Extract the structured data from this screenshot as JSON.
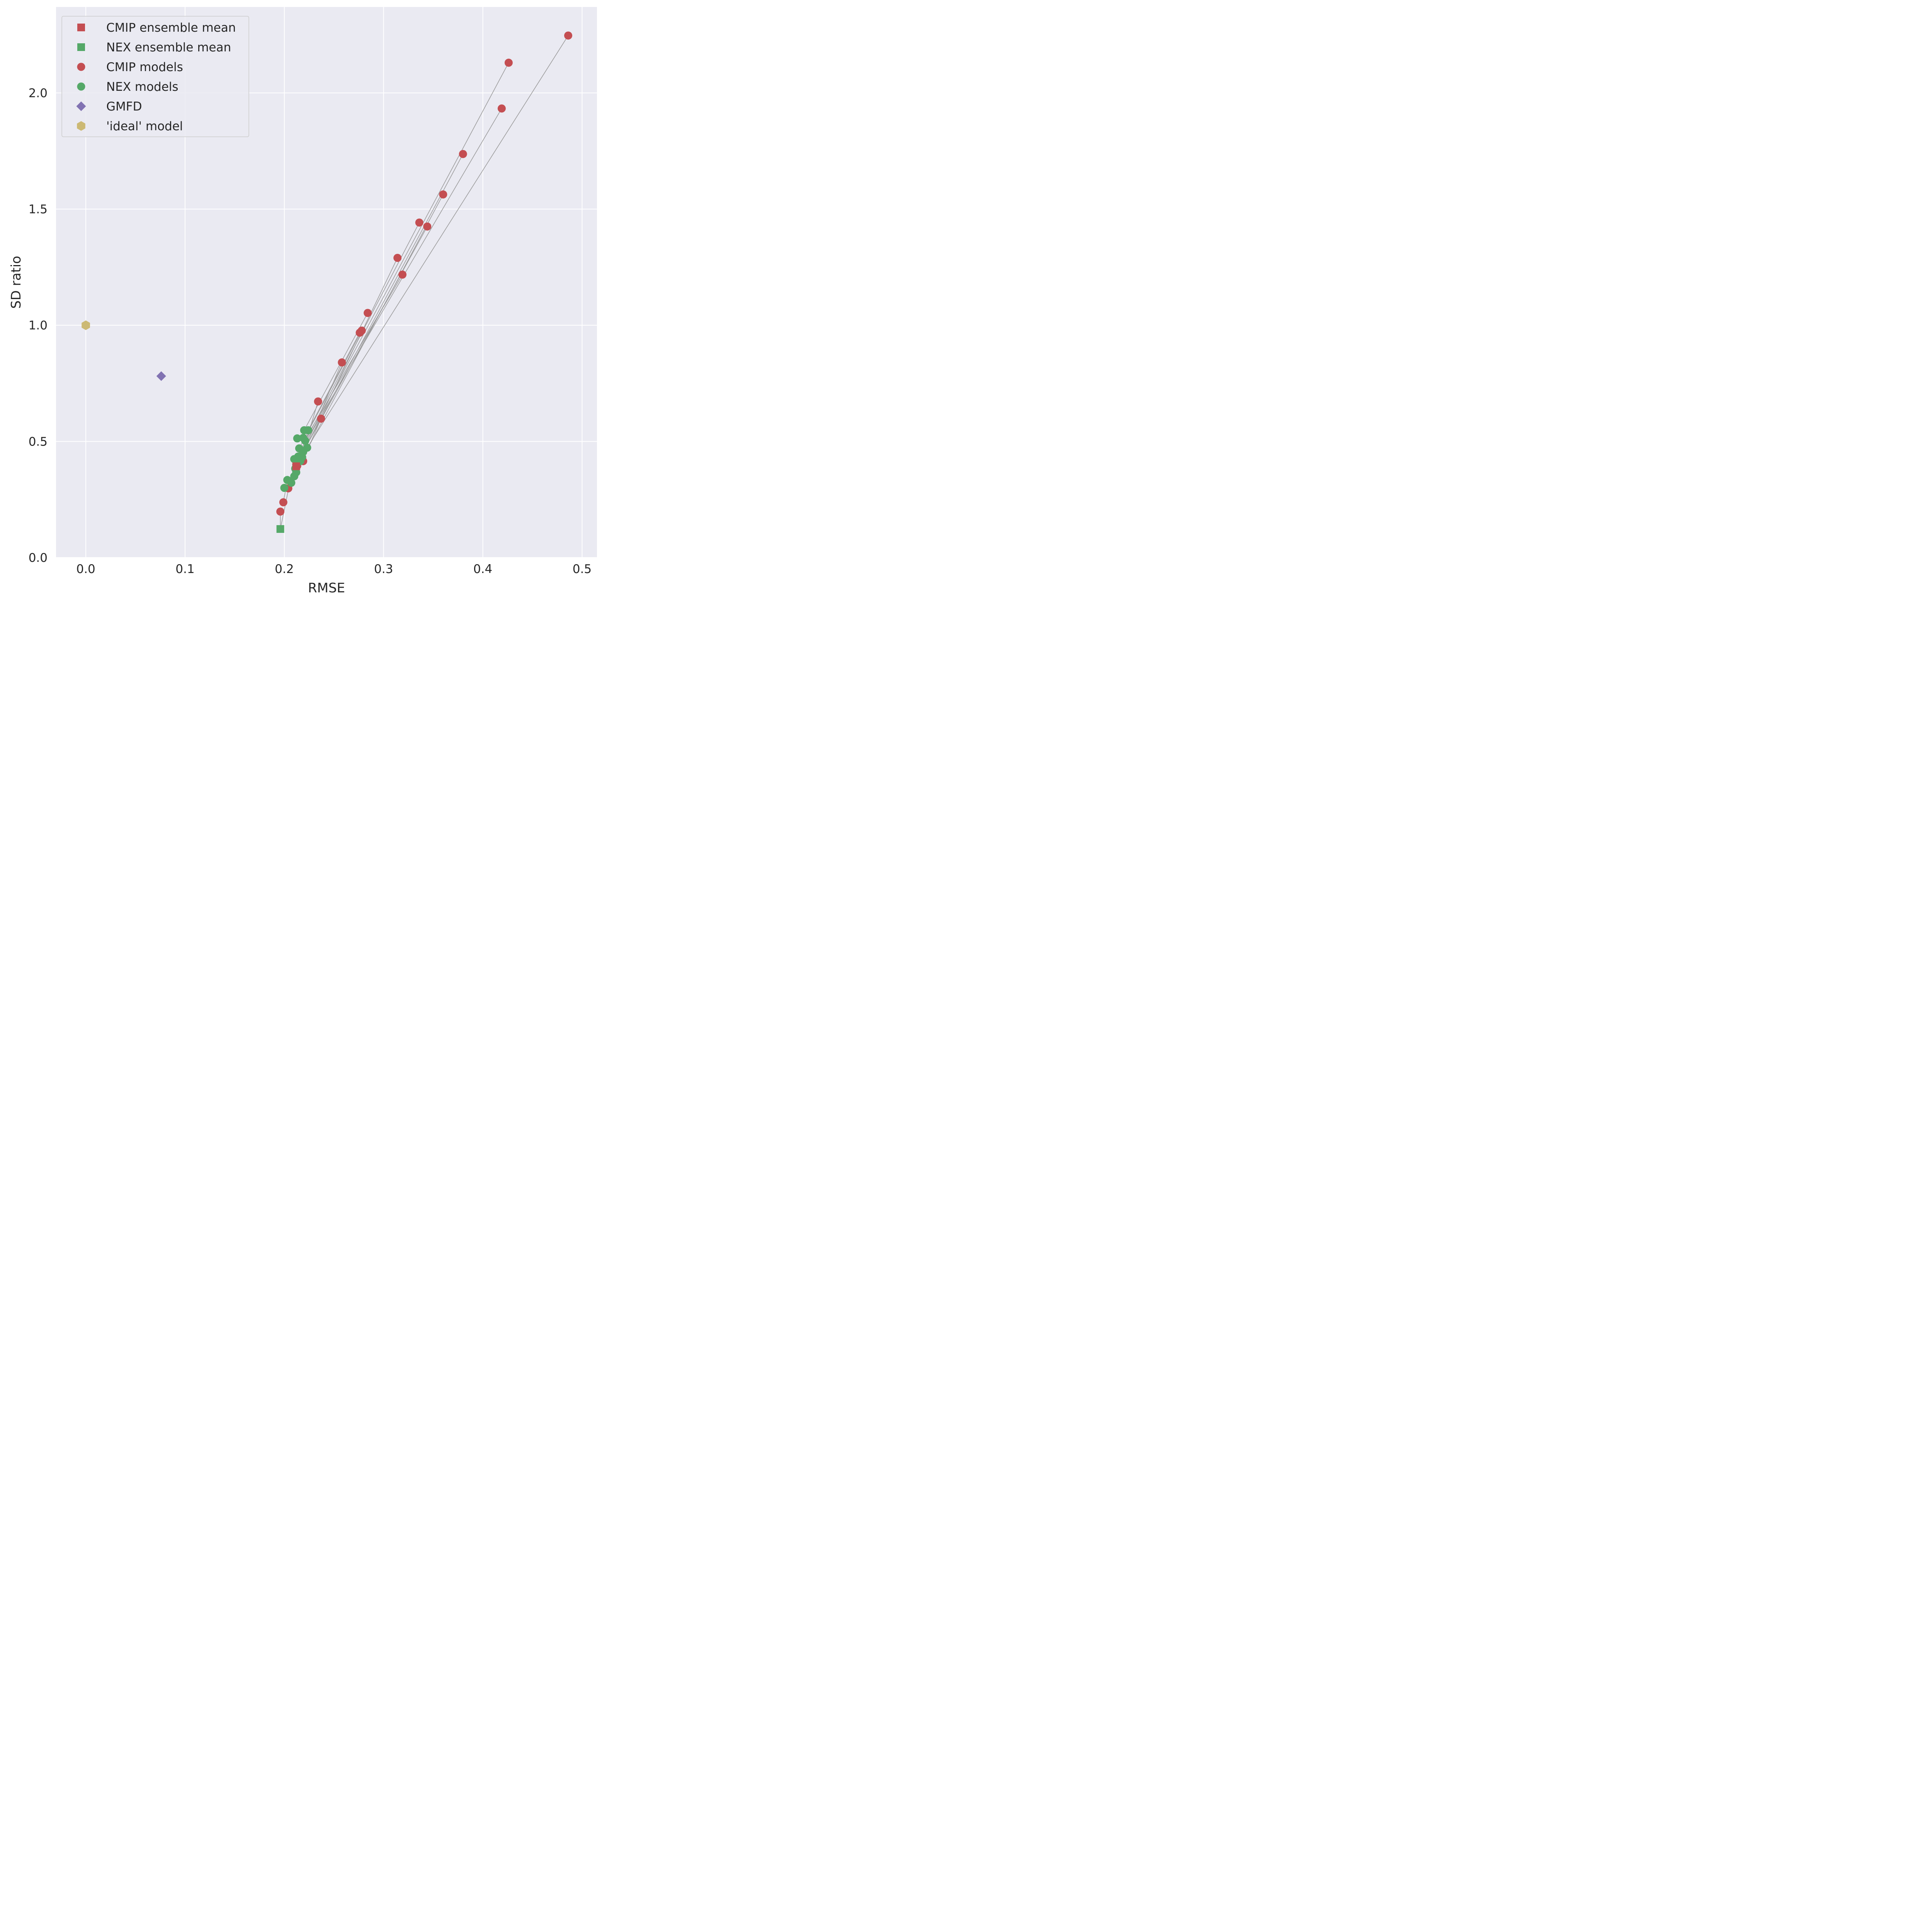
{
  "chart_data": {
    "type": "scatter",
    "xlabel": "RMSE",
    "ylabel": "SD ratio",
    "xlim": [
      -0.03,
      0.515
    ],
    "ylim": [
      0.0,
      2.37
    ],
    "xticks": [
      0.0,
      0.1,
      0.2,
      0.3,
      0.4,
      0.5
    ],
    "xtick_labels": [
      "0.0",
      "0.1",
      "0.2",
      "0.3",
      "0.4",
      "0.5"
    ],
    "yticks": [
      0.0,
      0.5,
      1.0,
      1.5,
      2.0
    ],
    "ytick_labels": [
      "0.0",
      "0.5",
      "1.0",
      "1.5",
      "2.0"
    ],
    "grid": true,
    "legend_position": "top-left",
    "colors": {
      "background": "#eaeaf2",
      "grid": "#ffffff",
      "cmip": "#c44e52",
      "nex": "#55a868",
      "gmfd": "#8172b2",
      "ideal": "#ccb974",
      "connector": "#9a9a9a"
    },
    "legend": [
      {
        "label": "CMIP ensemble mean",
        "marker": "square",
        "color": "#c44e52"
      },
      {
        "label": "NEX ensemble mean",
        "marker": "square",
        "color": "#55a868"
      },
      {
        "label": "CMIP models",
        "marker": "circle",
        "color": "#c44e52"
      },
      {
        "label": "NEX models",
        "marker": "circle",
        "color": "#55a868"
      },
      {
        "label": "GMFD",
        "marker": "diamond",
        "color": "#8172b2"
      },
      {
        "label": "'ideal' model",
        "marker": "hexagon",
        "color": "#ccb974"
      }
    ],
    "connectors": [
      [
        [
          0.486,
          2.247
        ],
        [
          0.223,
          0.473
        ]
      ],
      [
        [
          0.426,
          2.13
        ],
        [
          0.214,
          0.435
        ]
      ],
      [
        [
          0.419,
          1.933
        ],
        [
          0.222,
          0.5
        ]
      ],
      [
        [
          0.38,
          1.737
        ],
        [
          0.212,
          0.4
        ]
      ],
      [
        [
          0.36,
          1.563
        ],
        [
          0.218,
          0.425
        ]
      ],
      [
        [
          0.336,
          1.442
        ],
        [
          0.211,
          0.418
        ]
      ],
      [
        [
          0.344,
          1.425
        ],
        [
          0.219,
          0.455
        ]
      ],
      [
        [
          0.314,
          1.29
        ],
        [
          0.213,
          0.395
        ]
      ],
      [
        [
          0.319,
          1.218
        ],
        [
          0.221,
          0.51
        ]
      ],
      [
        [
          0.284,
          1.053
        ],
        [
          0.22,
          0.548
        ]
      ],
      [
        [
          0.278,
          0.977
        ],
        [
          0.215,
          0.47
        ]
      ],
      [
        [
          0.276,
          0.968
        ],
        [
          0.224,
          0.548
        ]
      ],
      [
        [
          0.258,
          0.84
        ],
        [
          0.212,
          0.38
        ]
      ],
      [
        [
          0.234,
          0.672
        ],
        [
          0.217,
          0.43
        ]
      ],
      [
        [
          0.237,
          0.598
        ],
        [
          0.225,
          0.48
        ]
      ],
      [
        [
          0.219,
          0.415
        ],
        [
          0.209,
          0.35
        ]
      ],
      [
        [
          0.212,
          0.395
        ],
        [
          0.209,
          0.35
        ]
      ],
      [
        [
          0.204,
          0.298
        ],
        [
          0.201,
          0.3
        ]
      ],
      [
        [
          0.199,
          0.238
        ],
        [
          0.203,
          0.334
        ]
      ],
      [
        [
          0.196,
          0.198
        ],
        [
          0.196,
          0.123
        ]
      ],
      [
        [
          0.196,
          0.123
        ],
        [
          0.204,
          0.29
        ]
      ]
    ],
    "series": [
      {
        "name": "CMIP ensemble mean",
        "marker": "square",
        "color": "#c44e52",
        "points": [
          {
            "x": 0.212,
            "y": 0.393
          }
        ]
      },
      {
        "name": "NEX ensemble mean",
        "marker": "square",
        "color": "#55a868",
        "points": [
          {
            "x": 0.196,
            "y": 0.123
          }
        ]
      },
      {
        "name": "CMIP models",
        "marker": "circle",
        "color": "#c44e52",
        "points": [
          {
            "x": 0.486,
            "y": 2.247
          },
          {
            "x": 0.426,
            "y": 2.13
          },
          {
            "x": 0.419,
            "y": 1.933
          },
          {
            "x": 0.38,
            "y": 1.737
          },
          {
            "x": 0.36,
            "y": 1.563
          },
          {
            "x": 0.336,
            "y": 1.442
          },
          {
            "x": 0.344,
            "y": 1.425
          },
          {
            "x": 0.314,
            "y": 1.29
          },
          {
            "x": 0.319,
            "y": 1.218
          },
          {
            "x": 0.284,
            "y": 1.053
          },
          {
            "x": 0.278,
            "y": 0.977
          },
          {
            "x": 0.276,
            "y": 0.968
          },
          {
            "x": 0.258,
            "y": 0.84
          },
          {
            "x": 0.234,
            "y": 0.672
          },
          {
            "x": 0.237,
            "y": 0.598
          },
          {
            "x": 0.219,
            "y": 0.415
          },
          {
            "x": 0.213,
            "y": 0.395
          },
          {
            "x": 0.204,
            "y": 0.298
          },
          {
            "x": 0.199,
            "y": 0.238
          },
          {
            "x": 0.196,
            "y": 0.198
          }
        ]
      },
      {
        "name": "NEX models",
        "marker": "circle",
        "color": "#55a868",
        "points": [
          {
            "x": 0.22,
            "y": 0.548
          },
          {
            "x": 0.224,
            "y": 0.548
          },
          {
            "x": 0.213,
            "y": 0.513
          },
          {
            "x": 0.219,
            "y": 0.515
          },
          {
            "x": 0.221,
            "y": 0.503
          },
          {
            "x": 0.215,
            "y": 0.47
          },
          {
            "x": 0.223,
            "y": 0.473
          },
          {
            "x": 0.219,
            "y": 0.455
          },
          {
            "x": 0.214,
            "y": 0.435
          },
          {
            "x": 0.218,
            "y": 0.432
          },
          {
            "x": 0.21,
            "y": 0.424
          },
          {
            "x": 0.213,
            "y": 0.42
          },
          {
            "x": 0.216,
            "y": 0.415
          },
          {
            "x": 0.212,
            "y": 0.4
          },
          {
            "x": 0.211,
            "y": 0.383
          },
          {
            "x": 0.212,
            "y": 0.367
          },
          {
            "x": 0.21,
            "y": 0.35
          },
          {
            "x": 0.203,
            "y": 0.334
          },
          {
            "x": 0.207,
            "y": 0.322
          },
          {
            "x": 0.2,
            "y": 0.3
          }
        ]
      },
      {
        "name": "GMFD",
        "marker": "diamond",
        "color": "#8172b2",
        "points": [
          {
            "x": 0.076,
            "y": 0.781
          }
        ]
      },
      {
        "name": "'ideal' model",
        "marker": "hexagon",
        "color": "#ccb974",
        "points": [
          {
            "x": 0.0,
            "y": 1.0
          }
        ]
      }
    ]
  }
}
